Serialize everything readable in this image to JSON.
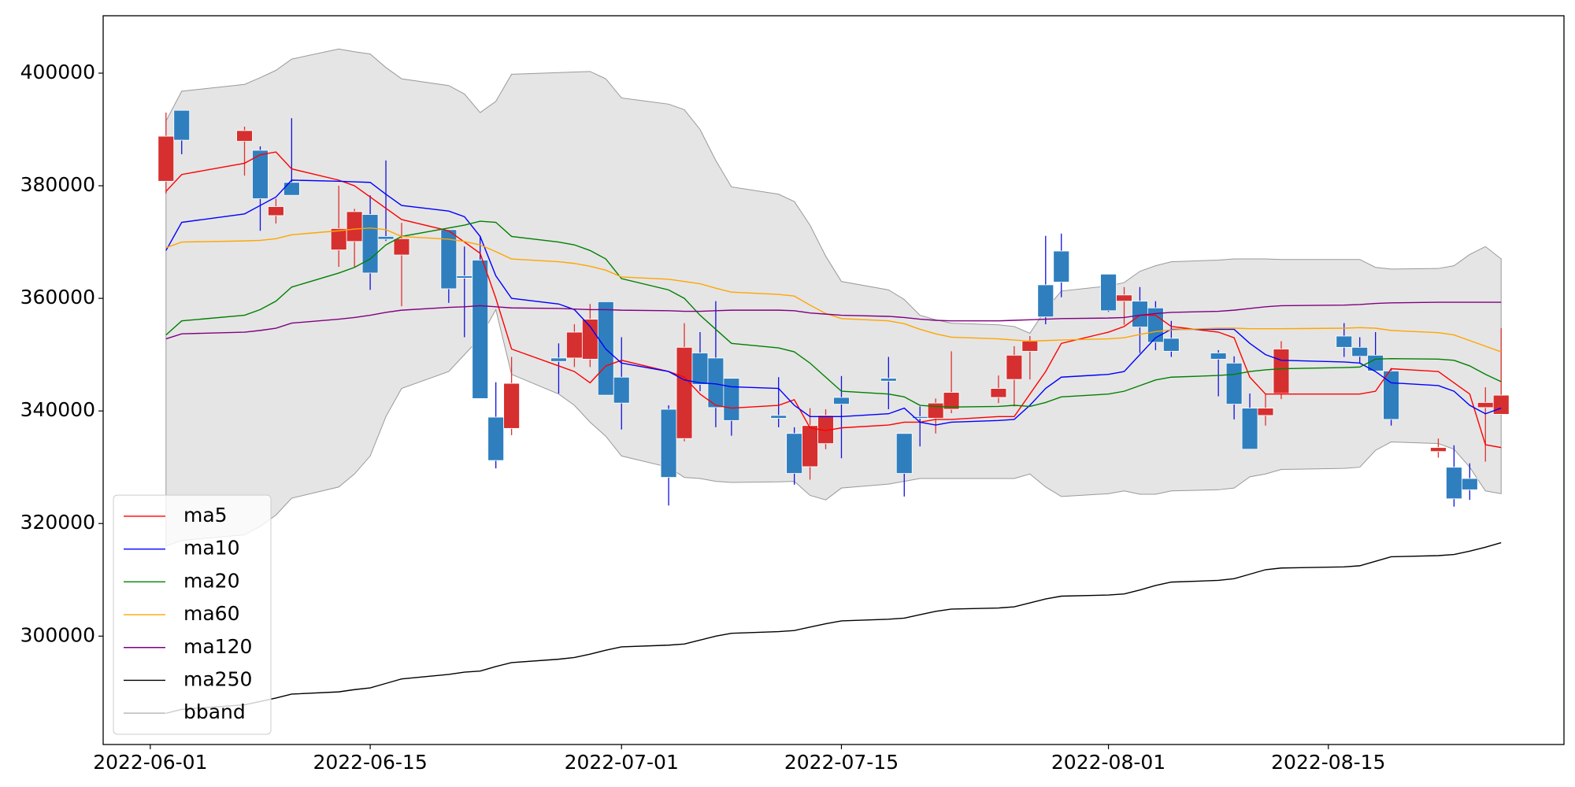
{
  "chart_data": {
    "type": "candlestick",
    "x": [
      "2022-06-02",
      "2022-06-03",
      "2022-06-07",
      "2022-06-08",
      "2022-06-09",
      "2022-06-10",
      "2022-06-13",
      "2022-06-14",
      "2022-06-15",
      "2022-06-16",
      "2022-06-17",
      "2022-06-20",
      "2022-06-21",
      "2022-06-22",
      "2022-06-23",
      "2022-06-24",
      "2022-06-27",
      "2022-06-28",
      "2022-06-29",
      "2022-06-30",
      "2022-07-01",
      "2022-07-04",
      "2022-07-05",
      "2022-07-06",
      "2022-07-07",
      "2022-07-08",
      "2022-07-11",
      "2022-07-12",
      "2022-07-13",
      "2022-07-14",
      "2022-07-15",
      "2022-07-18",
      "2022-07-19",
      "2022-07-20",
      "2022-07-21",
      "2022-07-22",
      "2022-07-25",
      "2022-07-26",
      "2022-07-27",
      "2022-07-28",
      "2022-07-29",
      "2022-08-01",
      "2022-08-02",
      "2022-08-03",
      "2022-08-04",
      "2022-08-05",
      "2022-08-08",
      "2022-08-09",
      "2022-08-10",
      "2022-08-11",
      "2022-08-12",
      "2022-08-16",
      "2022-08-17",
      "2022-08-18",
      "2022-08-19",
      "2022-08-22",
      "2022-08-23",
      "2022-08-24",
      "2022-08-25",
      "2022-08-26"
    ],
    "open": [
      380800,
      393400,
      387900,
      386300,
      374700,
      380600,
      368600,
      370100,
      374900,
      371000,
      367700,
      372200,
      364000,
      366800,
      338900,
      336900,
      349400,
      349400,
      349200,
      359400,
      346000,
      340300,
      335100,
      350300,
      349400,
      345800,
      339200,
      336000,
      330100,
      334200,
      342400,
      345800,
      336000,
      339000,
      338700,
      340300,
      342400,
      345600,
      350600,
      362400,
      368400,
      364300,
      359500,
      359500,
      358300,
      352900,
      350300,
      348500,
      340500,
      339200,
      343100,
      353300,
      351300,
      349900,
      347100,
      332800,
      330000,
      328000,
      340600,
      339400
    ],
    "high": [
      393000,
      393400,
      390500,
      387000,
      377700,
      392000,
      380000,
      375900,
      378300,
      384500,
      373400,
      372200,
      369200,
      371100,
      345100,
      349600,
      352000,
      355400,
      359000,
      359400,
      353100,
      341000,
      355600,
      354000,
      359500,
      345800,
      346000,
      337100,
      340500,
      340300,
      346200,
      349600,
      336000,
      340800,
      342200,
      350600,
      346300,
      351500,
      353300,
      371100,
      371500,
      364300,
      362000,
      362000,
      359500,
      356000,
      350800,
      349700,
      343100,
      343000,
      352400,
      355600,
      353100,
      354000,
      347600,
      335100,
      333900,
      330700,
      344200,
      354700
    ],
    "low": [
      378600,
      385600,
      381800,
      372000,
      373300,
      378300,
      365600,
      365600,
      361500,
      370200,
      358600,
      359200,
      353100,
      342200,
      329800,
      335700,
      343100,
      347800,
      347800,
      342800,
      336700,
      323200,
      334600,
      343500,
      337100,
      335600,
      337100,
      326900,
      327800,
      333200,
      331600,
      340300,
      324800,
      333700,
      336000,
      339600,
      341400,
      340800,
      345600,
      355400,
      360200,
      357600,
      355300,
      350300,
      350800,
      349600,
      342600,
      338500,
      333200,
      337400,
      342100,
      349600,
      348500,
      347100,
      337400,
      331700,
      323000,
      324200,
      331000,
      339400
    ],
    "close": [
      388800,
      388100,
      389800,
      377700,
      376300,
      378300,
      372400,
      375400,
      364500,
      370500,
      370600,
      361700,
      363600,
      342200,
      331200,
      344900,
      348800,
      354000,
      356300,
      342800,
      341400,
      328200,
      351300,
      344700,
      340600,
      338300,
      338700,
      328900,
      337400,
      339200,
      341200,
      345300,
      328900,
      338700,
      341400,
      343300,
      344000,
      349900,
      352400,
      356700,
      362900,
      357800,
      360600,
      354900,
      352200,
      350600,
      349200,
      341200,
      333200,
      340500,
      351000,
      351300,
      349700,
      347100,
      338500,
      333500,
      324400,
      326000,
      341500,
      342800
    ],
    "up_color": "#d62f2f",
    "down_color": "#2f7fbf",
    "up_wick_color": "#e03030",
    "down_wick_color": "#1010e0",
    "series": [
      {
        "name": "ma5",
        "color": "#ff0000",
        "values": [
          379000,
          382000,
          384000,
          385500,
          386000,
          383000,
          381000,
          380000,
          378000,
          376000,
          374000,
          372000,
          370000,
          368000,
          360000,
          351000,
          348000,
          347000,
          345000,
          348000,
          349000,
          347000,
          346000,
          343000,
          341000,
          340500,
          341000,
          342000,
          337000,
          336500,
          337000,
          337500,
          338000,
          338000,
          338500,
          338500,
          339000,
          339000,
          343000,
          347000,
          352000,
          354000,
          355000,
          357000,
          357000,
          355000,
          354000,
          353000,
          346000,
          343000,
          343000,
          343000,
          343000,
          343500,
          347500,
          347000,
          345000,
          343000,
          334000,
          333500
        ]
      },
      {
        "name": "ma10",
        "color": "#0000ff",
        "values": [
          368500,
          373500,
          375000,
          376500,
          378000,
          381000,
          380800,
          380700,
          380600,
          378500,
          376500,
          375500,
          374500,
          371000,
          364000,
          360000,
          359000,
          358000,
          355000,
          351000,
          348500,
          347000,
          345500,
          345000,
          344800,
          344300,
          344000,
          341000,
          339000,
          339000,
          339000,
          339500,
          340500,
          338000,
          337500,
          338000,
          338300,
          338500,
          341000,
          344000,
          346000,
          346500,
          347000,
          350000,
          353000,
          354500,
          354500,
          354500,
          352000,
          350000,
          349000,
          348700,
          348500,
          347000,
          345000,
          344500,
          343500,
          341000,
          339500,
          340500
        ]
      },
      {
        "name": "ma20",
        "color": "#008000",
        "values": [
          353500,
          356000,
          357000,
          358000,
          359500,
          362000,
          364500,
          365500,
          367000,
          369500,
          371000,
          372500,
          373000,
          373700,
          373500,
          371000,
          370000,
          369500,
          368500,
          367000,
          363500,
          361500,
          360000,
          357000,
          354500,
          352000,
          351200,
          350500,
          348500,
          346000,
          343500,
          343000,
          342500,
          341000,
          340800,
          340700,
          340800,
          341000,
          340800,
          341500,
          342500,
          343000,
          343500,
          344500,
          345500,
          346000,
          346300,
          346500,
          347000,
          347300,
          347500,
          347700,
          347800,
          349200,
          349300,
          349200,
          349000,
          348000,
          346500,
          345200
        ]
      },
      {
        "name": "ma60",
        "color": "#ffa500",
        "values": [
          369000,
          370000,
          370200,
          370300,
          370600,
          371300,
          372000,
          372300,
          372500,
          372200,
          371000,
          370500,
          370100,
          369500,
          368300,
          367000,
          366500,
          366200,
          365700,
          365000,
          363800,
          363400,
          363000,
          362600,
          361800,
          361100,
          360700,
          360400,
          358800,
          357300,
          356400,
          356000,
          355500,
          354500,
          353700,
          353100,
          352800,
          352600,
          352400,
          352500,
          352600,
          352800,
          353000,
          353600,
          354100,
          354400,
          354700,
          354700,
          354600,
          354600,
          354600,
          354700,
          354800,
          354700,
          354300,
          353900,
          353500,
          352500,
          351500,
          350500
        ]
      },
      {
        "name": "ma120",
        "color": "#800080",
        "values": [
          352800,
          353700,
          354000,
          354300,
          354700,
          355600,
          356300,
          356600,
          357000,
          357500,
          357900,
          358400,
          358500,
          358700,
          358500,
          358300,
          358200,
          358100,
          358000,
          358000,
          357900,
          357800,
          357700,
          357700,
          357800,
          357900,
          357900,
          357800,
          357400,
          357200,
          357000,
          356800,
          356600,
          356300,
          356100,
          356000,
          356000,
          356100,
          356200,
          356300,
          356400,
          356500,
          356600,
          357000,
          357300,
          357500,
          357700,
          357900,
          358200,
          358500,
          358700,
          358800,
          358900,
          359100,
          359200,
          359300,
          359300,
          359300,
          359300,
          359300
        ]
      },
      {
        "name": "ma250",
        "color": "#000000",
        "values": [
          286300,
          287000,
          287800,
          288400,
          289000,
          289700,
          290100,
          290500,
          290800,
          291600,
          292400,
          293200,
          293600,
          293800,
          294600,
          295300,
          295900,
          296200,
          296800,
          297500,
          298100,
          298400,
          298600,
          299300,
          300000,
          300500,
          300800,
          301000,
          301600,
          302200,
          302700,
          303000,
          303200,
          303800,
          304400,
          304800,
          305000,
          305200,
          305900,
          306600,
          307100,
          307300,
          307500,
          308200,
          309000,
          309600,
          309900,
          310200,
          311000,
          311800,
          312100,
          312300,
          312500,
          313300,
          314100,
          314300,
          314500,
          315100,
          315800,
          316600
        ]
      }
    ],
    "bband": {
      "name": "bband",
      "color": "#999999",
      "fill": "#e5e5e5",
      "upper": [
        391500,
        396800,
        398000,
        399200,
        400500,
        402500,
        404300,
        403800,
        403400,
        401000,
        399000,
        397800,
        396300,
        393000,
        395000,
        399800,
        400100,
        400200,
        400300,
        399000,
        395600,
        394500,
        393500,
        390000,
        384500,
        379800,
        378500,
        377200,
        373000,
        367500,
        363000,
        361500,
        359800,
        357000,
        356200,
        355600,
        355300,
        355000,
        353800,
        358000,
        361300,
        362200,
        362800,
        364800,
        365800,
        366500,
        366800,
        367000,
        367000,
        367000,
        366900,
        366900,
        366900,
        365500,
        365200,
        365300,
        365800,
        367800,
        369200,
        367000
      ],
      "lower": [
        316000,
        317000,
        318000,
        319500,
        321500,
        324500,
        326500,
        328800,
        332000,
        339000,
        344000,
        347000,
        350000,
        353000,
        358000,
        346500,
        343000,
        341000,
        338000,
        335500,
        332000,
        330000,
        328200,
        328000,
        327500,
        327300,
        327400,
        327500,
        325000,
        324200,
        326300,
        327000,
        327500,
        328000,
        328000,
        328000,
        328000,
        328000,
        328800,
        326500,
        324800,
        325300,
        325800,
        325200,
        325200,
        325800,
        326000,
        326300,
        328300,
        328800,
        329600,
        329800,
        330000,
        333000,
        334500,
        334200,
        333200,
        330000,
        325800,
        325300
      ]
    },
    "xlim": [
      "2022-05-29",
      "2022-08-30"
    ],
    "xticks": [
      "2022-06-01",
      "2022-06-15",
      "2022-07-01",
      "2022-07-15",
      "2022-08-01",
      "2022-08-15"
    ],
    "ylim": [
      280750,
      410200
    ],
    "yticks": [
      300000,
      320000,
      340000,
      360000,
      380000,
      400000
    ],
    "legend": "lower left"
  }
}
